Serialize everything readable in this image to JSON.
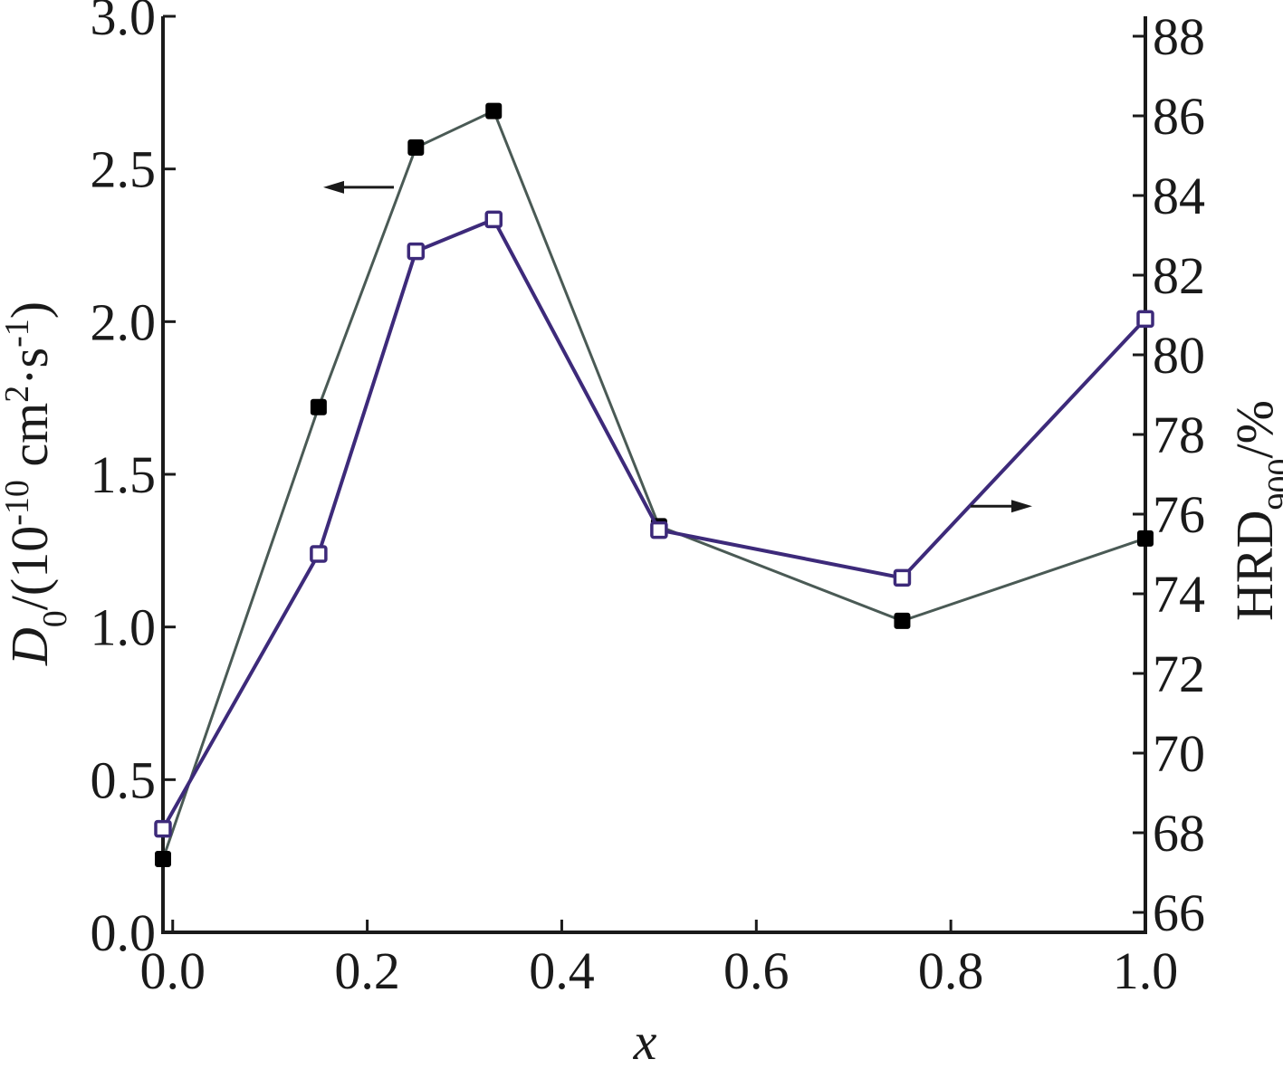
{
  "chart_data": {
    "type": "line",
    "x": [
      -0.01,
      0.15,
      0.25,
      0.33,
      0.5,
      0.75,
      1.0
    ],
    "xlim": [
      -0.01,
      1.0
    ],
    "x_ticks": [
      0.0,
      0.2,
      0.4,
      0.6,
      0.8,
      1.0
    ],
    "x_tick_labels": [
      "0.0",
      "0.2",
      "0.4",
      "0.6",
      "0.8",
      "1.0"
    ],
    "xlabel": "x",
    "y_left": {
      "label_main": "D",
      "label_sub": "0",
      "label_rest": "/(10",
      "label_exp1": "-10",
      "label_cm": " cm",
      "label_exp2": "2",
      "label_s": "·s",
      "label_exp3": "-1",
      "label_close": ")",
      "ylim": [
        0.0,
        3.0
      ],
      "ticks": [
        0.0,
        0.5,
        1.0,
        1.5,
        2.0,
        2.5,
        3.0
      ],
      "tick_labels": [
        "0.0",
        "0.5",
        "1.0",
        "1.5",
        "2.0",
        "2.5",
        "3.0"
      ]
    },
    "y_right": {
      "label_main": "HRD",
      "label_sub": "900",
      "label_rest": "/%",
      "ylim": [
        65.5,
        88.5
      ],
      "ticks": [
        66,
        68,
        70,
        72,
        74,
        76,
        78,
        80,
        82,
        84,
        86,
        88
      ],
      "tick_labels": [
        "66",
        "68",
        "70",
        "72",
        "74",
        "76",
        "78",
        "80",
        "82",
        "84",
        "86",
        "88"
      ]
    },
    "series": [
      {
        "axis": "left",
        "marker": "filled-square",
        "color": "#4a5a55",
        "marker_color": "#000000",
        "values": [
          0.24,
          1.72,
          2.57,
          2.69,
          1.33,
          1.02,
          1.29
        ]
      },
      {
        "axis": "right",
        "marker": "open-square",
        "color": "#3d2a7a",
        "marker_color": "#3d2a7a",
        "values": [
          68.1,
          75.0,
          82.6,
          83.4,
          75.6,
          74.4,
          80.9
        ]
      }
    ],
    "annotations": [
      {
        "type": "arrow",
        "direction": "left",
        "points_to": "left-axis"
      },
      {
        "type": "arrow",
        "direction": "right",
        "points_to": "right-axis"
      }
    ]
  }
}
